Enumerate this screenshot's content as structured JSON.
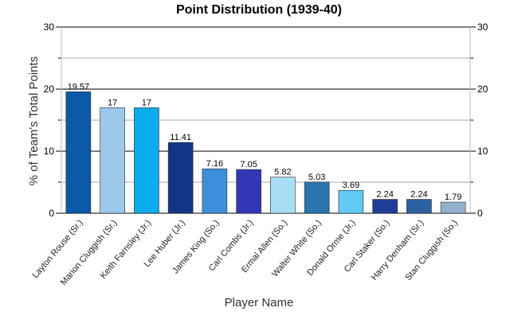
{
  "chart_data": {
    "type": "bar",
    "title": "Point Distribution (1939-40)",
    "xlabel": "Player Name",
    "ylabel": "% of Team's Total Points",
    "ylim": [
      0,
      30
    ],
    "yticks": [
      0,
      10,
      20,
      30
    ],
    "grid": true,
    "categories": [
      "Layton Rouse (Sr.)",
      "Marion Cluggish (Sr.)",
      "Keith Farnsley (Jr.)",
      "Lee Huber (Jr.)",
      "James King (So.)",
      "Carl Combs (Jr.)",
      "Ermal Allen (So.)",
      "Walter White (So.)",
      "Donald Orme (Jr.)",
      "Carl Staker (So.)",
      "Harry Denham (Sr.)",
      "Stan Cluggish (So.)"
    ],
    "values": [
      19.57,
      17,
      17,
      11.41,
      7.16,
      7.05,
      5.82,
      5.03,
      3.69,
      2.24,
      2.24,
      1.79
    ],
    "value_labels": [
      "19.57",
      "17",
      "17",
      "11.41",
      "7.16",
      "7.05",
      "5.82",
      "5.03",
      "3.69",
      "2.24",
      "2.24",
      "1.79"
    ],
    "colors": [
      "#0a5aa8",
      "#9cc8ec",
      "#0aacec",
      "#123585",
      "#3d8fdc",
      "#3237b8",
      "#a6def6",
      "#2a74b0",
      "#62c8f4",
      "#1e3d96",
      "#2c62a4",
      "#93b0cc"
    ]
  }
}
